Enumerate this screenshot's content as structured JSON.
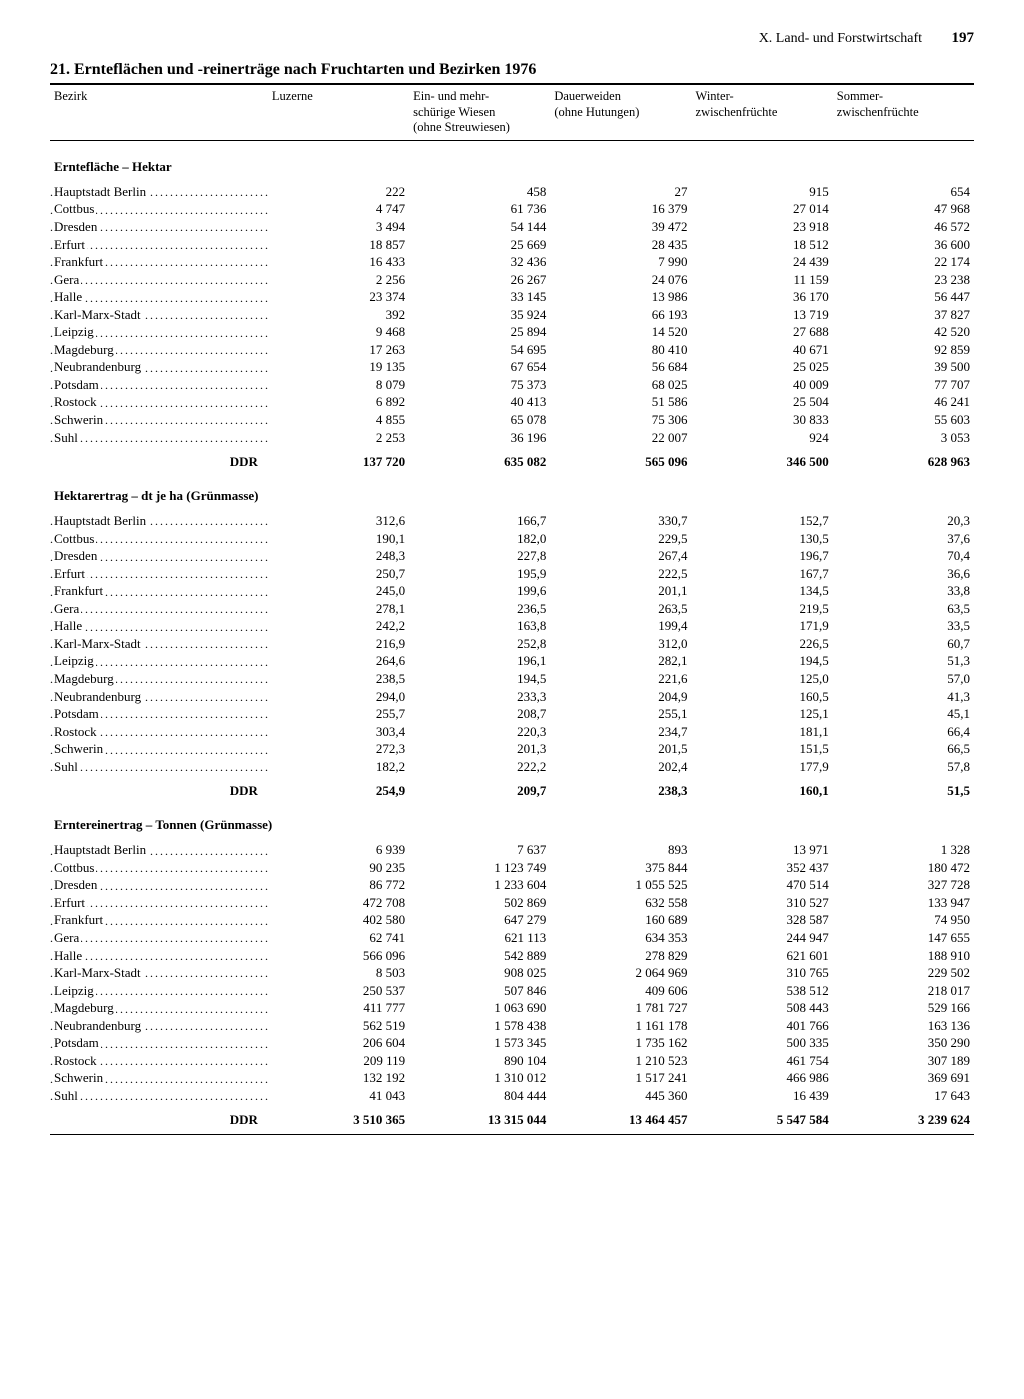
{
  "header": {
    "section": "X. Land- und Forstwirtschaft",
    "page": "197"
  },
  "title": "21. Ernteflächen und -reinerträge nach Fruchtarten und Bezirken 1976",
  "columns": [
    "Bezirk",
    "Luzerne",
    "Ein- und mehr-\nschürige Wiesen\n(ohne Streuwiesen)",
    "Dauerweiden\n(ohne Hutungen)",
    "Winter-\nzwischenfrüchte",
    "Sommer-\nzwischenfrüchte"
  ],
  "districts": [
    "Hauptstadt Berlin",
    "Cottbus",
    "Dresden",
    "Erfurt",
    "Frankfurt",
    "Gera",
    "Halle",
    "Karl-Marx-Stadt",
    "Leipzig",
    "Magdeburg",
    "Neubrandenburg",
    "Potsdam",
    "Rostock",
    "Schwerin",
    "Suhl"
  ],
  "total_label": "DDR",
  "sections": [
    {
      "title": "Erntefläche – Hektar",
      "rows": [
        [
          "222",
          "458",
          "27",
          "915",
          "654"
        ],
        [
          "4 747",
          "61 736",
          "16 379",
          "27 014",
          "47 968"
        ],
        [
          "3 494",
          "54 144",
          "39 472",
          "23 918",
          "46 572"
        ],
        [
          "18 857",
          "25 669",
          "28 435",
          "18 512",
          "36 600"
        ],
        [
          "16 433",
          "32 436",
          "7 990",
          "24 439",
          "22 174"
        ],
        [
          "2 256",
          "26 267",
          "24 076",
          "11 159",
          "23 238"
        ],
        [
          "23 374",
          "33 145",
          "13 986",
          "36 170",
          "56 447"
        ],
        [
          "392",
          "35 924",
          "66 193",
          "13 719",
          "37 827"
        ],
        [
          "9 468",
          "25 894",
          "14 520",
          "27 688",
          "42 520"
        ],
        [
          "17 263",
          "54 695",
          "80 410",
          "40 671",
          "92 859"
        ],
        [
          "19 135",
          "67 654",
          "56 684",
          "25 025",
          "39 500"
        ],
        [
          "8 079",
          "75 373",
          "68 025",
          "40 009",
          "77 707"
        ],
        [
          "6 892",
          "40 413",
          "51 586",
          "25 504",
          "46 241"
        ],
        [
          "4 855",
          "65 078",
          "75 306",
          "30 833",
          "55 603"
        ],
        [
          "2 253",
          "36 196",
          "22 007",
          "924",
          "3 053"
        ]
      ],
      "total": [
        "137 720",
        "635 082",
        "565 096",
        "346 500",
        "628 963"
      ]
    },
    {
      "title": "Hektarertrag – dt je ha (Grünmasse)",
      "rows": [
        [
          "312,6",
          "166,7",
          "330,7",
          "152,7",
          "20,3"
        ],
        [
          "190,1",
          "182,0",
          "229,5",
          "130,5",
          "37,6"
        ],
        [
          "248,3",
          "227,8",
          "267,4",
          "196,7",
          "70,4"
        ],
        [
          "250,7",
          "195,9",
          "222,5",
          "167,7",
          "36,6"
        ],
        [
          "245,0",
          "199,6",
          "201,1",
          "134,5",
          "33,8"
        ],
        [
          "278,1",
          "236,5",
          "263,5",
          "219,5",
          "63,5"
        ],
        [
          "242,2",
          "163,8",
          "199,4",
          "171,9",
          "33,5"
        ],
        [
          "216,9",
          "252,8",
          "312,0",
          "226,5",
          "60,7"
        ],
        [
          "264,6",
          "196,1",
          "282,1",
          "194,5",
          "51,3"
        ],
        [
          "238,5",
          "194,5",
          "221,6",
          "125,0",
          "57,0"
        ],
        [
          "294,0",
          "233,3",
          "204,9",
          "160,5",
          "41,3"
        ],
        [
          "255,7",
          "208,7",
          "255,1",
          "125,1",
          "45,1"
        ],
        [
          "303,4",
          "220,3",
          "234,7",
          "181,1",
          "66,4"
        ],
        [
          "272,3",
          "201,3",
          "201,5",
          "151,5",
          "66,5"
        ],
        [
          "182,2",
          "222,2",
          "202,4",
          "177,9",
          "57,8"
        ]
      ],
      "total": [
        "254,9",
        "209,7",
        "238,3",
        "160,1",
        "51,5"
      ]
    },
    {
      "title": "Erntereinertrag – Tonnen (Grünmasse)",
      "rows": [
        [
          "6 939",
          "7 637",
          "893",
          "13 971",
          "1 328"
        ],
        [
          "90 235",
          "1 123 749",
          "375 844",
          "352 437",
          "180 472"
        ],
        [
          "86 772",
          "1 233 604",
          "1 055 525",
          "470 514",
          "327 728"
        ],
        [
          "472 708",
          "502 869",
          "632 558",
          "310 527",
          "133 947"
        ],
        [
          "402 580",
          "647 279",
          "160 689",
          "328 587",
          "74 950"
        ],
        [
          "62 741",
          "621 113",
          "634 353",
          "244 947",
          "147 655"
        ],
        [
          "566 096",
          "542 889",
          "278 829",
          "621 601",
          "188 910"
        ],
        [
          "8 503",
          "908 025",
          "2 064 969",
          "310 765",
          "229 502"
        ],
        [
          "250 537",
          "507 846",
          "409 606",
          "538 512",
          "218 017"
        ],
        [
          "411 777",
          "1 063 690",
          "1 781 727",
          "508 443",
          "529 166"
        ],
        [
          "562 519",
          "1 578 438",
          "1 161 178",
          "401 766",
          "163 136"
        ],
        [
          "206 604",
          "1 573 345",
          "1 735 162",
          "500 335",
          "350 290"
        ],
        [
          "209 119",
          "890 104",
          "1 210 523",
          "461 754",
          "307 189"
        ],
        [
          "132 192",
          "1 310 012",
          "1 517 241",
          "466 986",
          "369 691"
        ],
        [
          "41 043",
          "804 444",
          "445 360",
          "16 439",
          "17 643"
        ]
      ],
      "total": [
        "3 510 365",
        "13 315 044",
        "13 464 457",
        "5 547 584",
        "3 239 624"
      ]
    }
  ]
}
